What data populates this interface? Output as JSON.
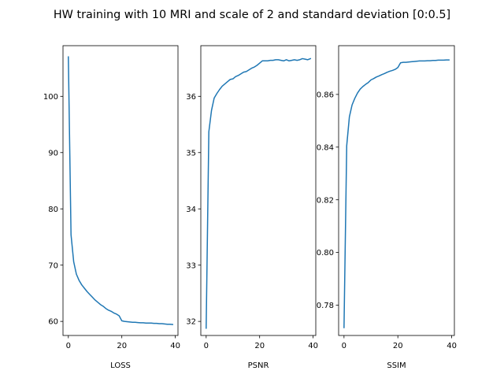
{
  "title": "HW training with 10 MRI and scale of 2 and standard deviation [0:0.5]",
  "colors": {
    "line": "#1f77b4",
    "axis": "#000000",
    "background": "#ffffff"
  },
  "chart_data": [
    {
      "type": "line",
      "xlabel": "LOSS",
      "ylabel": "",
      "xlim": [
        -2,
        41
      ],
      "ylim": [
        57.5,
        109
      ],
      "xticks": [
        0,
        20,
        40
      ],
      "yticks": [
        60,
        70,
        80,
        90,
        100
      ],
      "ytick_labels": [
        "60",
        "70",
        "80",
        "90",
        "100"
      ],
      "grid": false,
      "series": [
        {
          "x": [
            0,
            1,
            2,
            3,
            4,
            5,
            6,
            7,
            8,
            9,
            10,
            11,
            12,
            13,
            14,
            15,
            16,
            17,
            18,
            19,
            20,
            21,
            22,
            23,
            24,
            25,
            26,
            27,
            28,
            29,
            30,
            31,
            32,
            33,
            34,
            35,
            36,
            37,
            38,
            39
          ],
          "values": [
            107.0,
            75.4,
            70.6,
            68.4,
            67.3,
            66.5,
            65.9,
            65.3,
            64.8,
            64.3,
            63.8,
            63.4,
            63.0,
            62.7,
            62.3,
            62.0,
            61.8,
            61.5,
            61.3,
            61.0,
            60.1,
            60.0,
            59.95,
            59.9,
            59.85,
            59.85,
            59.8,
            59.75,
            59.75,
            59.7,
            59.7,
            59.7,
            59.65,
            59.65,
            59.6,
            59.6,
            59.55,
            59.5,
            59.5,
            59.45
          ]
        }
      ]
    },
    {
      "type": "line",
      "xlabel": "PSNR",
      "ylabel": "",
      "xlim": [
        -2,
        41
      ],
      "ylim": [
        31.75,
        36.9
      ],
      "xticks": [
        0,
        20,
        40
      ],
      "yticks": [
        32,
        33,
        34,
        35,
        36
      ],
      "ytick_labels": [
        "32",
        "33",
        "34",
        "35",
        "36"
      ],
      "grid": false,
      "series": [
        {
          "x": [
            0,
            1,
            2,
            3,
            4,
            5,
            6,
            7,
            8,
            9,
            10,
            11,
            12,
            13,
            14,
            15,
            16,
            17,
            18,
            19,
            20,
            21,
            22,
            23,
            24,
            25,
            26,
            27,
            28,
            29,
            30,
            31,
            32,
            33,
            34,
            35,
            36,
            37,
            38,
            39
          ],
          "values": [
            31.88,
            35.37,
            35.75,
            35.97,
            36.05,
            36.12,
            36.18,
            36.22,
            36.26,
            36.3,
            36.31,
            36.35,
            36.37,
            36.4,
            36.43,
            36.44,
            36.47,
            36.5,
            36.52,
            36.55,
            36.59,
            36.63,
            36.63,
            36.63,
            36.64,
            36.64,
            36.65,
            36.65,
            36.64,
            36.63,
            36.65,
            36.63,
            36.64,
            36.65,
            36.64,
            36.65,
            36.67,
            36.66,
            36.65,
            36.67
          ]
        }
      ]
    },
    {
      "type": "line",
      "xlabel": "SSIM",
      "ylabel": "",
      "xlim": [
        -2,
        41
      ],
      "ylim": [
        0.7685,
        0.8785
      ],
      "xticks": [
        0,
        20,
        40
      ],
      "yticks": [
        0.78,
        0.8,
        0.82,
        0.84,
        0.86
      ],
      "ytick_labels": [
        "0.78",
        "0.80",
        "0.82",
        "0.84",
        "0.86"
      ],
      "grid": false,
      "series": [
        {
          "x": [
            0,
            1,
            2,
            3,
            4,
            5,
            6,
            7,
            8,
            9,
            10,
            11,
            12,
            13,
            14,
            15,
            16,
            17,
            18,
            19,
            20,
            21,
            22,
            23,
            24,
            25,
            26,
            27,
            28,
            29,
            30,
            31,
            32,
            33,
            34,
            35,
            36,
            37,
            38,
            39
          ],
          "values": [
            0.7715,
            0.8405,
            0.8515,
            0.856,
            0.8585,
            0.8605,
            0.862,
            0.863,
            0.8638,
            0.8645,
            0.8655,
            0.866,
            0.8666,
            0.867,
            0.8675,
            0.8679,
            0.8684,
            0.8688,
            0.8691,
            0.8695,
            0.8702,
            0.872,
            0.8722,
            0.8722,
            0.8723,
            0.8724,
            0.8725,
            0.8726,
            0.8727,
            0.8727,
            0.8727,
            0.8728,
            0.8728,
            0.8729,
            0.8729,
            0.873,
            0.873,
            0.873,
            0.8731,
            0.8731
          ]
        }
      ]
    }
  ]
}
